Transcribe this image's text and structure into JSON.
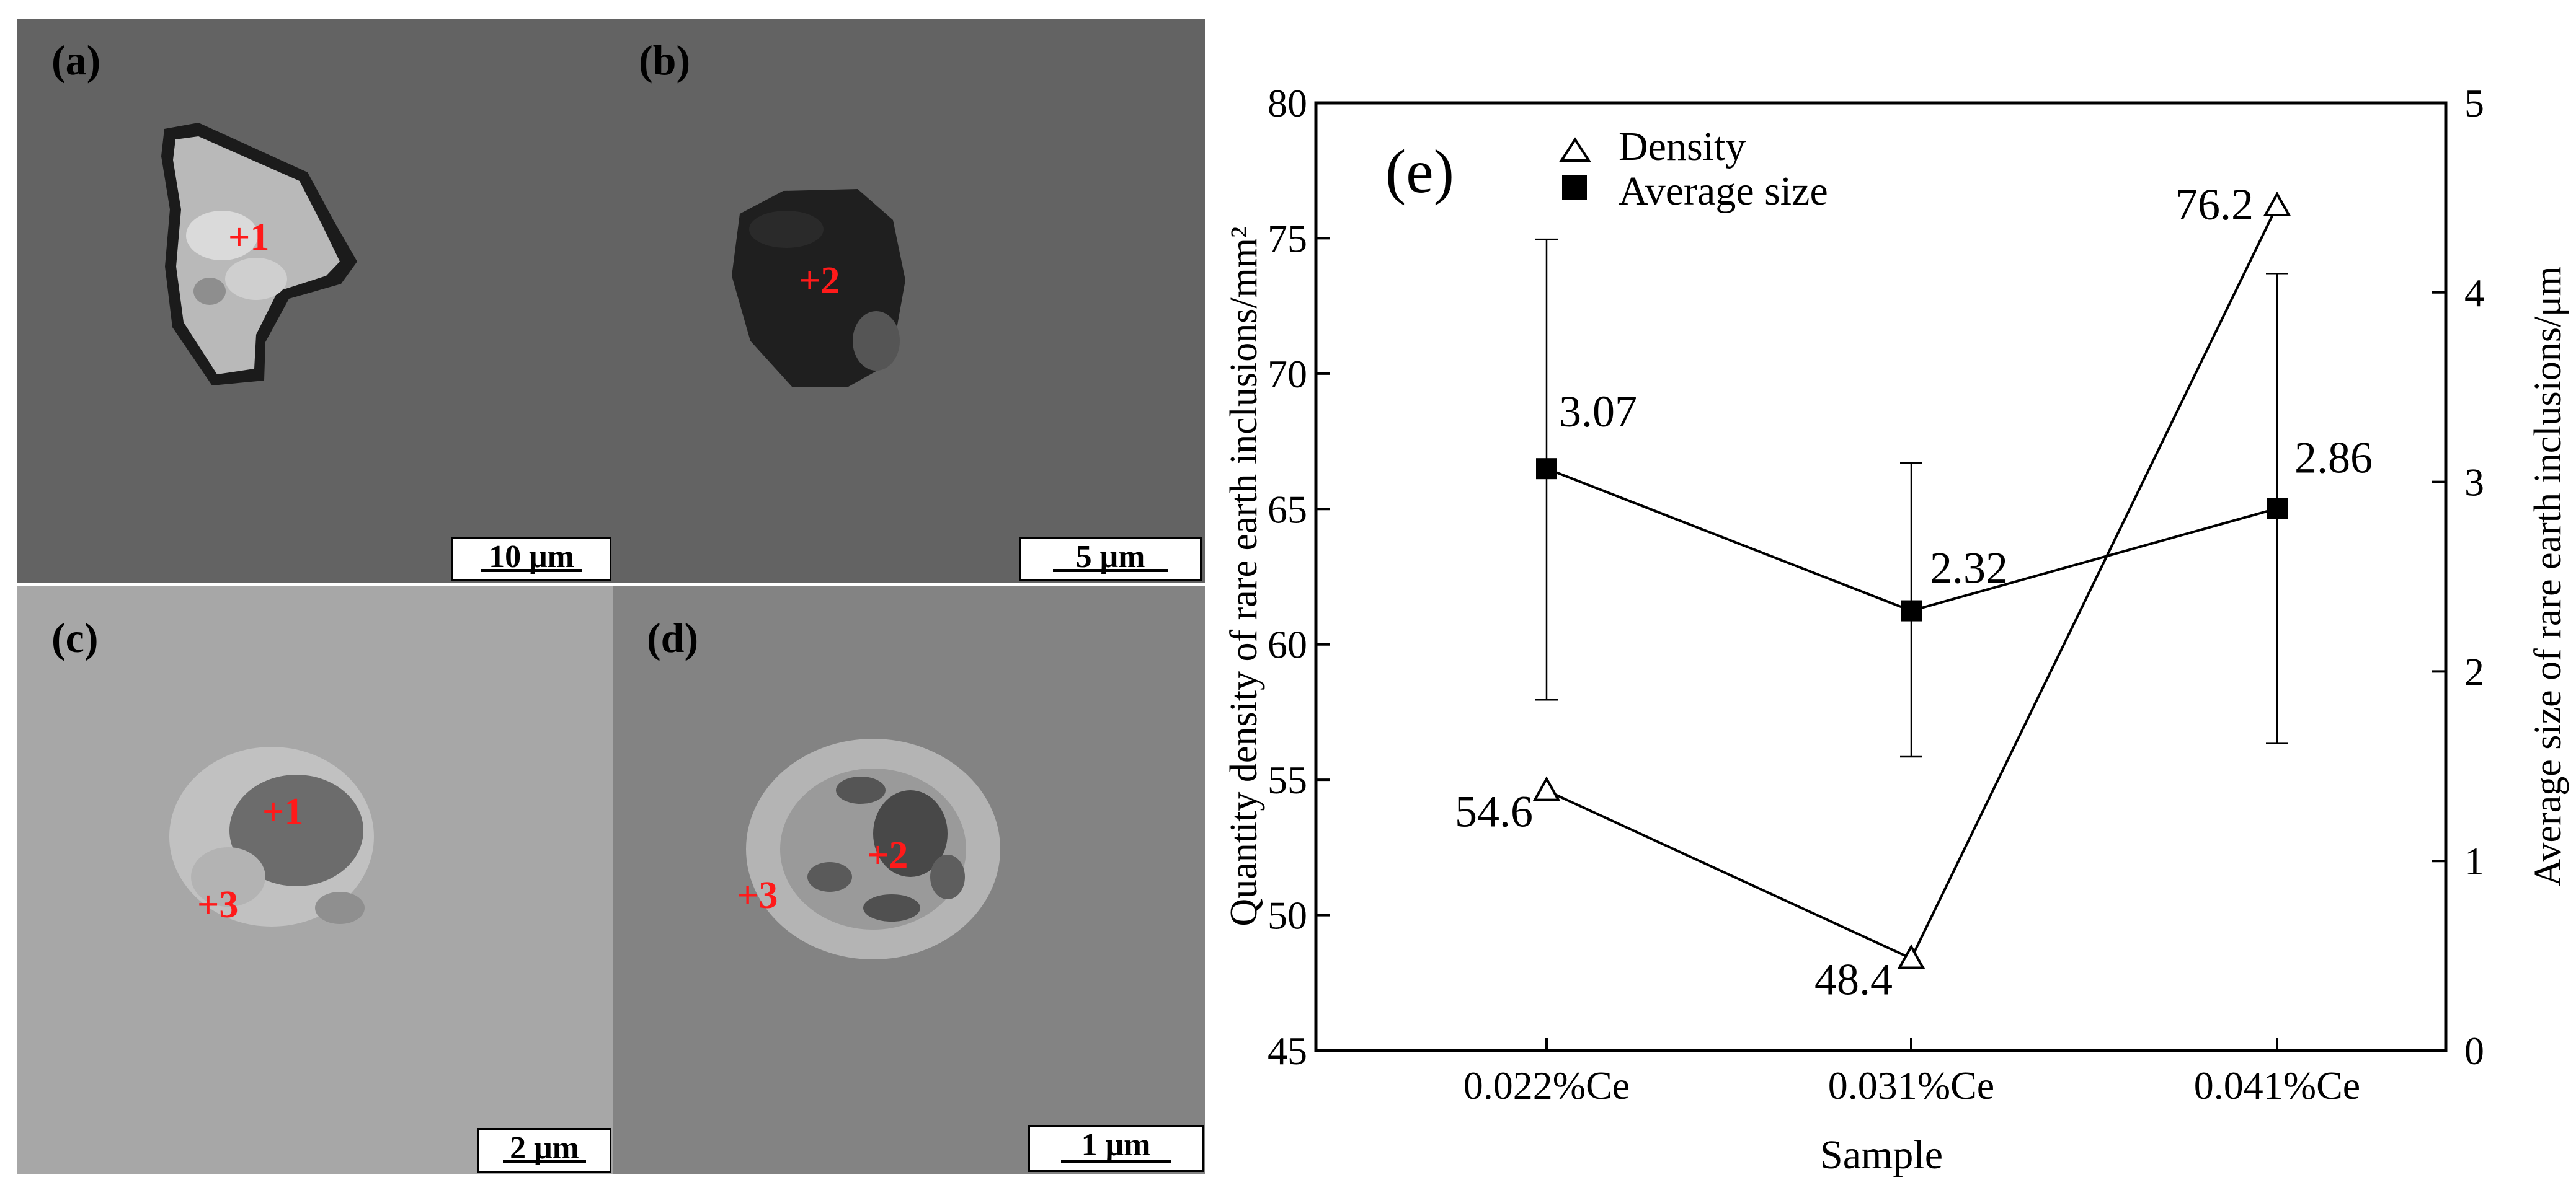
{
  "panels": [
    {
      "label": "(a)",
      "markers": [
        "+1"
      ],
      "scale": "10 μm"
    },
    {
      "label": "(b)",
      "markers": [
        "+2"
      ],
      "scale": "5 μm"
    },
    {
      "label": "(c)",
      "markers": [
        "+1",
        "+3"
      ],
      "scale": "2 μm"
    },
    {
      "label": "(d)",
      "markers": [
        "+2",
        "+3"
      ],
      "scale": "1 μm"
    }
  ],
  "chart_data": {
    "type": "line",
    "panel_label": "(e)",
    "categories": [
      "0.022%Ce",
      "0.031%Ce",
      "0.041%Ce"
    ],
    "xlabel": "Sample",
    "ylabel_left": "Quantity density of rare earth inclusions/mm²",
    "ylabel_right": "Average size of rare earth inclusions/μm",
    "ylim_left": [
      45,
      80
    ],
    "yticks_left": [
      "45",
      "50",
      "55",
      "60",
      "65",
      "70",
      "75",
      "80"
    ],
    "ylim_right": [
      0,
      5
    ],
    "yticks_right": [
      "0",
      "1",
      "2",
      "3",
      "4",
      "5"
    ],
    "grid": false,
    "legend_position": "top-left",
    "series": [
      {
        "name": "Density",
        "axis": "left",
        "marker": "open-triangle",
        "values": [
          54.6,
          48.4,
          76.2
        ],
        "labels": [
          "54.6",
          "48.4",
          "76.2"
        ]
      },
      {
        "name": "Average size",
        "axis": "right",
        "marker": "filled-square",
        "values": [
          3.07,
          2.32,
          2.86
        ],
        "labels": [
          "3.07",
          "2.32",
          "2.86"
        ],
        "error_low": [
          1.85,
          1.55,
          1.62
        ],
        "error_high": [
          4.28,
          3.1,
          4.1
        ]
      }
    ]
  }
}
